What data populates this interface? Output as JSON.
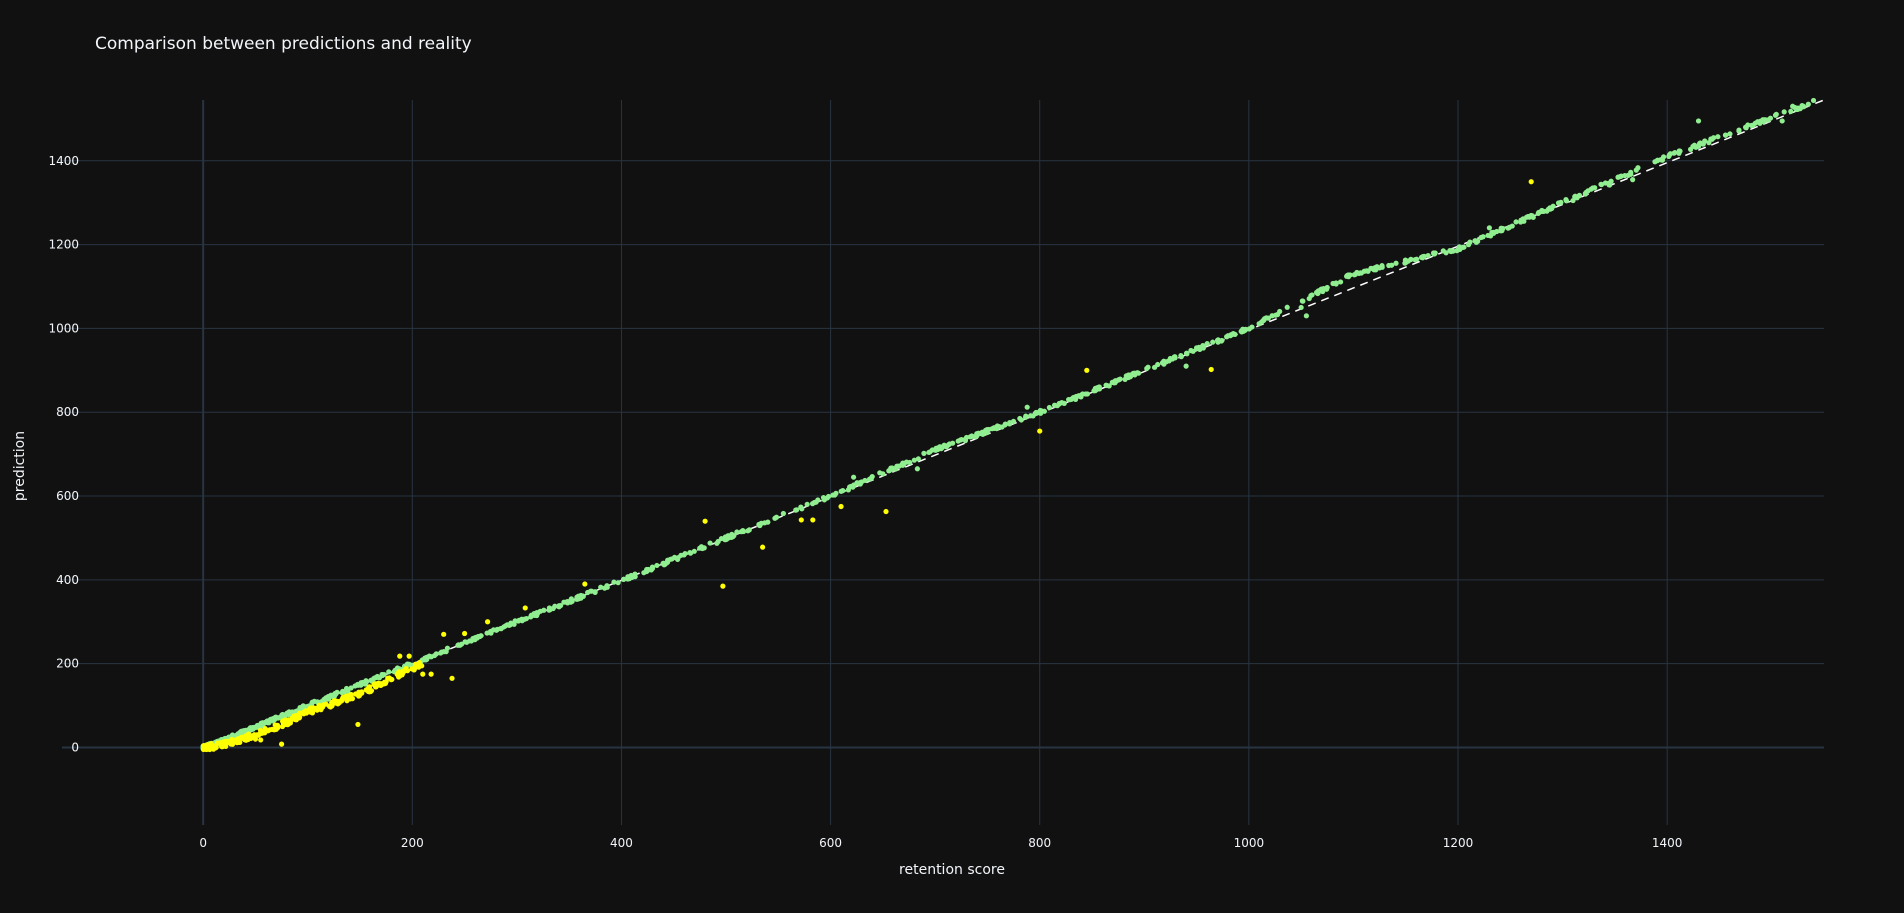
{
  "chart_data": {
    "type": "scatter",
    "title": "Comparison between predictions and reality",
    "xlabel": "retention score",
    "ylabel": "prediction",
    "xlim": [
      -135,
      1550
    ],
    "ylim": [
      -185,
      1545
    ],
    "xticks": [
      0,
      200,
      400,
      600,
      800,
      1000,
      1200,
      1400
    ],
    "yticks": [
      0,
      200,
      400,
      600,
      800,
      1000,
      1200,
      1400
    ],
    "grid": true,
    "legend": "none",
    "colors": {
      "background": "#111111",
      "grid": "#283442",
      "zeroline": "#283442",
      "text": "#f2f5fa",
      "green": "#90ee90",
      "yellow": "#ffff00",
      "reference_line": "#ffffff"
    },
    "reference_line": {
      "style": "dashed",
      "points": [
        [
          0,
          0
        ],
        [
          1550,
          1545
        ]
      ]
    },
    "series": [
      {
        "color": "green",
        "band": [
          [
            0,
            0
          ],
          [
            20,
            18
          ],
          [
            100,
            100
          ],
          [
            200,
            200
          ],
          [
            300,
            300
          ],
          [
            400,
            398
          ],
          [
            500,
            500
          ],
          [
            600,
            600
          ],
          [
            700,
            710
          ],
          [
            800,
            800
          ],
          [
            900,
            900
          ],
          [
            1000,
            1000
          ],
          [
            1100,
            1130
          ],
          [
            1200,
            1190
          ],
          [
            1300,
            1300
          ],
          [
            1400,
            1410
          ],
          [
            1540,
            1540
          ]
        ],
        "outliers": [
          [
            622,
            645
          ],
          [
            683,
            665
          ],
          [
            788,
            812
          ],
          [
            935,
            935
          ],
          [
            940,
            910
          ],
          [
            950,
            952
          ],
          [
            1055,
            1030
          ],
          [
            1230,
            1240
          ],
          [
            1272,
            1265
          ],
          [
            1310,
            1305
          ],
          [
            1345,
            1342
          ],
          [
            1367,
            1355
          ],
          [
            1430,
            1495
          ],
          [
            1475,
            1480
          ],
          [
            1510,
            1495
          ],
          [
            1520,
            1530
          ],
          [
            1535,
            1535
          ],
          [
            1050,
            1050
          ]
        ]
      },
      {
        "color": "yellow",
        "band": [
          [
            0,
            0
          ],
          [
            10,
            3
          ],
          [
            20,
            8
          ],
          [
            40,
            22
          ],
          [
            60,
            40
          ],
          [
            80,
            60
          ],
          [
            100,
            85
          ],
          [
            130,
            110
          ],
          [
            160,
            140
          ],
          [
            180,
            165
          ],
          [
            200,
            190
          ],
          [
            210,
            200
          ]
        ],
        "outliers": [
          [
            148,
            55
          ],
          [
            210,
            175
          ],
          [
            218,
            175
          ],
          [
            238,
            165
          ],
          [
            230,
            270
          ],
          [
            250,
            272
          ],
          [
            188,
            218
          ],
          [
            197,
            218
          ],
          [
            272,
            300
          ],
          [
            308,
            333
          ],
          [
            480,
            540
          ],
          [
            497,
            385
          ],
          [
            535,
            478
          ],
          [
            572,
            543
          ],
          [
            583,
            543
          ],
          [
            610,
            575
          ],
          [
            653,
            563
          ],
          [
            800,
            755
          ],
          [
            845,
            900
          ],
          [
            964,
            902
          ],
          [
            1270,
            1350
          ],
          [
            50,
            20
          ],
          [
            55,
            18
          ],
          [
            70,
            45
          ],
          [
            75,
            8
          ],
          [
            35,
            12
          ],
          [
            365,
            390
          ]
        ]
      }
    ]
  }
}
